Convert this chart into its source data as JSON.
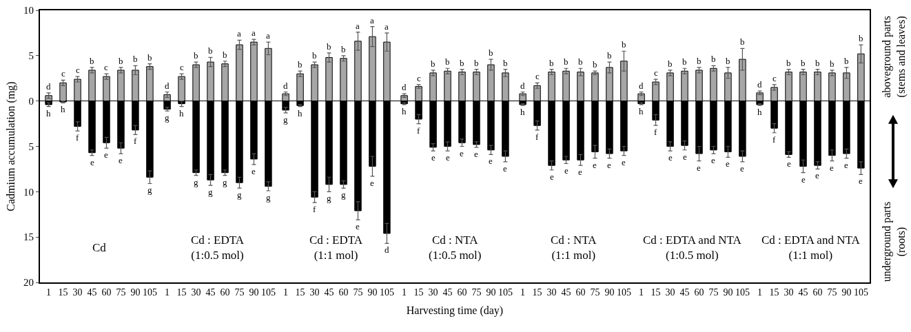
{
  "chart_data": [
    {
      "type": "bar",
      "stacked": true,
      "ylabel": "Cadmium accumulation (mg)",
      "categories": [
        "1",
        "15",
        "30",
        "45",
        "60",
        "75",
        "90",
        "105"
      ],
      "ylim": [
        -20,
        10
      ],
      "yticks": [
        {
          "value": -20,
          "label": "20"
        },
        {
          "value": -15,
          "label": "15"
        },
        {
          "value": -10,
          "label": "10"
        },
        {
          "value": -5,
          "label": "5"
        },
        0,
        5,
        10
      ],
      "annotations": [
        "Cd"
      ],
      "series": [
        {
          "color": "#a6a6a6",
          "values": [
            0.6,
            2.0,
            2.4,
            3.4,
            2.7,
            3.4,
            3.4,
            3.8
          ],
          "errors": [
            0.3,
            0.3,
            0.3,
            0.3,
            0.3,
            0.3,
            0.5,
            0.3
          ],
          "value_labels": [
            "d",
            "c",
            "c",
            "b",
            "c",
            "b",
            "b",
            "b"
          ]
        },
        {
          "color": "#000000",
          "values": [
            -0.4,
            -0.1,
            -2.8,
            -5.7,
            -4.6,
            -5.2,
            -3.2,
            -8.4
          ],
          "errors": [
            0.2,
            0.1,
            0.5,
            0.3,
            0.6,
            0.6,
            0.5,
            0.7
          ],
          "value_labels": [
            "h",
            "h",
            "f",
            "e",
            "e",
            "e",
            "f",
            "g"
          ]
        }
      ]
    },
    {
      "type": "bar",
      "categories": [
        "1",
        "15",
        "30",
        "45",
        "60",
        "75",
        "90",
        "105"
      ],
      "ylim": [
        -20,
        10
      ],
      "stacked": true,
      "tick_labels": "x",
      "annotations": [
        "Cd : EDTA\n(1:0.5 mol)"
      ],
      "series": [
        {
          "color": "#a6a6a6",
          "values": [
            0.7,
            2.7,
            4.0,
            4.3,
            4.1,
            6.2,
            6.5,
            5.8
          ],
          "errors": [
            0.3,
            0.3,
            0.3,
            0.5,
            0.3,
            0.5,
            0.3,
            0.7
          ],
          "value_labels": [
            "d",
            "c",
            "b",
            "b",
            "b",
            "a",
            "a",
            "a"
          ]
        },
        {
          "color": "#000000",
          "values": [
            -0.9,
            -0.3,
            -7.9,
            -8.7,
            -7.9,
            -9.0,
            -6.4,
            -9.4
          ],
          "errors": [
            0.2,
            0.3,
            0.3,
            0.6,
            0.3,
            0.6,
            0.6,
            0.5
          ],
          "value_labels": [
            "g",
            "h",
            "g",
            "g",
            "g",
            "g",
            "e",
            "g"
          ]
        }
      ]
    },
    {
      "type": "bar",
      "categories": [
        "1",
        "15",
        "30",
        "45",
        "60",
        "75",
        "90",
        "105"
      ],
      "ylim": [
        -20,
        10
      ],
      "stacked": true,
      "tick_labels": "x",
      "annotations": [
        "Cd : EDTA\n(1:1 mol)"
      ],
      "series": [
        {
          "color": "#a6a6a6",
          "values": [
            0.8,
            3.0,
            4.0,
            4.8,
            4.7,
            6.6,
            7.1,
            6.5
          ],
          "errors": [
            0.2,
            0.3,
            0.3,
            0.5,
            0.3,
            1.0,
            1.1,
            1.0
          ],
          "value_labels": [
            "d",
            "b",
            "b",
            "b",
            "b",
            "a",
            "a",
            "a"
          ]
        },
        {
          "color": "#000000",
          "values": [
            -1.0,
            -0.5,
            -10.6,
            -9.2,
            -9.2,
            -12.1,
            -7.2,
            -14.6
          ],
          "errors": [
            0.3,
            0.1,
            0.6,
            0.8,
            0.4,
            1.0,
            1.1,
            1.1
          ],
          "value_labels": [
            "g",
            "h",
            "f",
            "g",
            "g",
            "e",
            "e",
            "d"
          ]
        }
      ]
    },
    {
      "type": "bar",
      "xlabel": "Harvesting time (day)",
      "categories": [
        "1",
        "15",
        "30",
        "45",
        "60",
        "75",
        "90",
        "105"
      ],
      "ylim": [
        -20,
        10
      ],
      "stacked": true,
      "tick_labels": "x",
      "annotations": [
        "Cd : NTA\n(1:0.5 mol)"
      ],
      "series": [
        {
          "color": "#a6a6a6",
          "values": [
            0.6,
            1.6,
            3.1,
            3.3,
            3.2,
            3.2,
            4.0,
            3.1
          ],
          "errors": [
            0.2,
            0.2,
            0.3,
            0.3,
            0.3,
            0.3,
            0.6,
            0.4
          ],
          "value_labels": [
            "d",
            "c",
            "b",
            "b",
            "b",
            "b",
            "b",
            "b"
          ]
        },
        {
          "color": "#000000",
          "values": [
            -0.3,
            -2.0,
            -5.1,
            -5.0,
            -4.6,
            -4.8,
            -5.4,
            -6.1
          ],
          "errors": [
            0.1,
            0.5,
            0.4,
            0.5,
            0.4,
            0.3,
            0.5,
            0.6
          ],
          "value_labels": [
            "h",
            "f",
            "e",
            "e",
            "e",
            "e",
            "e",
            "e"
          ]
        }
      ]
    },
    {
      "type": "bar",
      "categories": [
        "1",
        "15",
        "30",
        "45",
        "60",
        "75",
        "90",
        "105"
      ],
      "ylim": [
        -20,
        10
      ],
      "stacked": true,
      "tick_labels": "x",
      "annotations": [
        "Cd : NTA\n(1:1 mol)"
      ],
      "series": [
        {
          "color": "#a6a6a6",
          "values": [
            0.8,
            1.7,
            3.2,
            3.3,
            3.2,
            3.1,
            3.7,
            4.4
          ],
          "errors": [
            0.2,
            0.3,
            0.3,
            0.3,
            0.4,
            0.2,
            0.6,
            1.1
          ],
          "value_labels": [
            "d",
            "c",
            "b",
            "b",
            "b",
            "b",
            "b",
            "b"
          ]
        },
        {
          "color": "#000000",
          "values": [
            -0.4,
            -2.7,
            -7.1,
            -6.5,
            -6.5,
            -5.6,
            -5.8,
            -5.5
          ],
          "errors": [
            0.1,
            0.5,
            0.5,
            0.4,
            0.6,
            0.7,
            0.5,
            0.5
          ],
          "value_labels": [
            "h",
            "f",
            "e",
            "e",
            "e",
            "e",
            "e",
            "e"
          ]
        }
      ]
    },
    {
      "type": "bar",
      "categories": [
        "1",
        "15",
        "30",
        "45",
        "60",
        "75",
        "90",
        "105"
      ],
      "ylim": [
        -20,
        10
      ],
      "stacked": true,
      "tick_labels": "x",
      "annotations": [
        "Cd : EDTA and NTA\n(1:0.5 mol)"
      ],
      "series": [
        {
          "color": "#a6a6a6",
          "values": [
            0.8,
            2.1,
            3.1,
            3.3,
            3.4,
            3.6,
            3.1,
            4.6
          ],
          "errors": [
            0.2,
            0.3,
            0.3,
            0.3,
            0.3,
            0.3,
            0.6,
            1.2
          ],
          "value_labels": [
            "d",
            "c",
            "b",
            "b",
            "b",
            "b",
            "b",
            "b"
          ]
        },
        {
          "color": "#000000",
          "values": [
            -0.3,
            -2.1,
            -5.0,
            -4.9,
            -5.8,
            -5.4,
            -5.6,
            -6.1
          ],
          "errors": [
            0.1,
            0.6,
            0.5,
            0.5,
            0.8,
            0.4,
            0.6,
            0.6
          ],
          "value_labels": [
            "h",
            "f",
            "e",
            "e",
            "e",
            "e",
            "e",
            "e"
          ]
        }
      ]
    },
    {
      "type": "bar",
      "categories": [
        "1",
        "15",
        "30",
        "45",
        "60",
        "75",
        "90",
        "105"
      ],
      "ylim": [
        -20,
        10
      ],
      "stacked": true,
      "tick_labels": "x",
      "annotations": [
        "Cd : EDTA and NTA\n(1:1 mol)",
        "aboveground parts\n(stems and leaves)",
        "underground parts\n(roots)"
      ],
      "series": [
        {
          "color": "#a6a6a6",
          "values": [
            0.9,
            1.5,
            3.2,
            3.2,
            3.2,
            3.1,
            3.1,
            5.2
          ],
          "errors": [
            0.2,
            0.3,
            0.3,
            0.3,
            0.3,
            0.3,
            0.6,
            1.0
          ],
          "value_labels": [
            "d",
            "c",
            "b",
            "b",
            "b",
            "b",
            "b",
            "b"
          ]
        },
        {
          "color": "#000000",
          "values": [
            -0.4,
            -3.0,
            -5.9,
            -7.2,
            -7.1,
            -6.0,
            -5.8,
            -7.4
          ],
          "errors": [
            0.1,
            0.5,
            0.3,
            0.7,
            0.4,
            0.6,
            0.5,
            0.7
          ],
          "value_labels": [
            "h",
            "f",
            "e",
            "e",
            "e",
            "e",
            "e",
            "e"
          ]
        }
      ]
    }
  ]
}
